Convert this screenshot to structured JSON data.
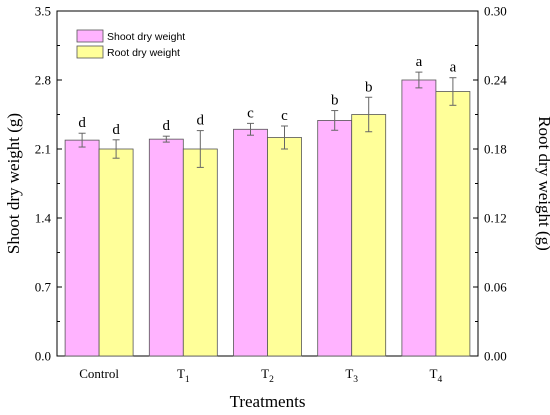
{
  "chart_data": {
    "type": "bar",
    "xlabel": "Treatments",
    "ylabel_left": "Shoot dry weight (g)",
    "ylabel_right": "Root dry weight (g)",
    "categories": [
      {
        "main": "Control",
        "sub": ""
      },
      {
        "main": "T",
        "sub": "1"
      },
      {
        "main": "T",
        "sub": "2"
      },
      {
        "main": "T",
        "sub": "3"
      },
      {
        "main": "T",
        "sub": "4"
      }
    ],
    "y_left": {
      "min": 0,
      "max": 3.5,
      "ticks": [
        "0.0",
        "0.7",
        "1.4",
        "2.1",
        "2.8",
        "3.5"
      ]
    },
    "y_right": {
      "min": 0,
      "max": 0.3,
      "ticks": [
        "0.00",
        "0.06",
        "0.12",
        "0.18",
        "0.24",
        "0.30"
      ]
    },
    "legend_position": "top-left",
    "series": [
      {
        "name": "Shoot dry weight",
        "axis": "left",
        "color": "#ffb3ff",
        "values": [
          2.19,
          2.2,
          2.3,
          2.39,
          2.8
        ],
        "errors": [
          0.07,
          0.03,
          0.06,
          0.1,
          0.08
        ],
        "labels": [
          "d",
          "d",
          "c",
          "b",
          "a"
        ]
      },
      {
        "name": "Root dry weight",
        "axis": "right",
        "color": "#ffff99",
        "values": [
          0.18,
          0.18,
          0.19,
          0.21,
          0.23
        ],
        "errors": [
          0.008,
          0.016,
          0.01,
          0.015,
          0.012
        ],
        "labels": [
          "d",
          "d",
          "c",
          "b",
          "a"
        ]
      }
    ]
  }
}
